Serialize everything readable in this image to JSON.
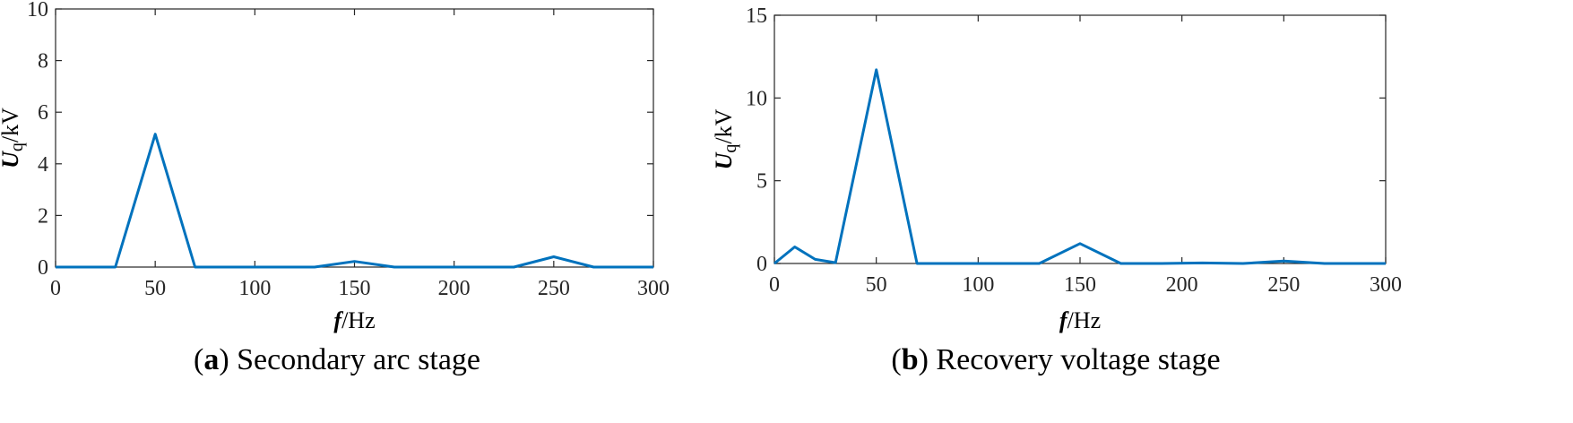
{
  "chart_data": [
    {
      "type": "line",
      "panel_label": "a",
      "caption": "Secondary arc stage",
      "xlabel": {
        "symbol": "f",
        "unit": "/Hz"
      },
      "ylabel": {
        "symbol": "U",
        "subscript": "q",
        "unit": "/kV"
      },
      "xlim": [
        0,
        300
      ],
      "ylim": [
        0,
        10
      ],
      "xticks": [
        0,
        50,
        100,
        150,
        200,
        250,
        300
      ],
      "yticks": [
        0,
        2,
        4,
        6,
        8,
        10
      ],
      "grid": false,
      "color": "#0072BD",
      "x": [
        0,
        10,
        20,
        30,
        50,
        70,
        90,
        110,
        130,
        150,
        170,
        190,
        210,
        230,
        250,
        270,
        290,
        300
      ],
      "y": [
        0,
        0,
        0,
        0,
        5.15,
        0,
        0,
        0,
        0,
        0.22,
        0,
        0,
        0,
        0,
        0.4,
        0,
        0,
        0
      ]
    },
    {
      "type": "line",
      "panel_label": "b",
      "caption": "Recovery voltage stage",
      "xlabel": {
        "symbol": "f",
        "unit": "/Hz"
      },
      "ylabel": {
        "symbol": "U",
        "subscript": "q",
        "unit": "/kV"
      },
      "xlim": [
        0,
        300
      ],
      "ylim": [
        0,
        15
      ],
      "xticks": [
        0,
        50,
        100,
        150,
        200,
        250,
        300
      ],
      "yticks": [
        0,
        5,
        10,
        15
      ],
      "grid": false,
      "color": "#0072BD",
      "x": [
        0,
        10,
        20,
        30,
        50,
        70,
        90,
        110,
        130,
        150,
        170,
        190,
        210,
        230,
        250,
        270,
        290,
        300
      ],
      "y": [
        0,
        1.0,
        0.25,
        0.05,
        11.7,
        0,
        0,
        0,
        0,
        1.2,
        0,
        0,
        0.03,
        0,
        0.15,
        0,
        0,
        0
      ]
    }
  ]
}
